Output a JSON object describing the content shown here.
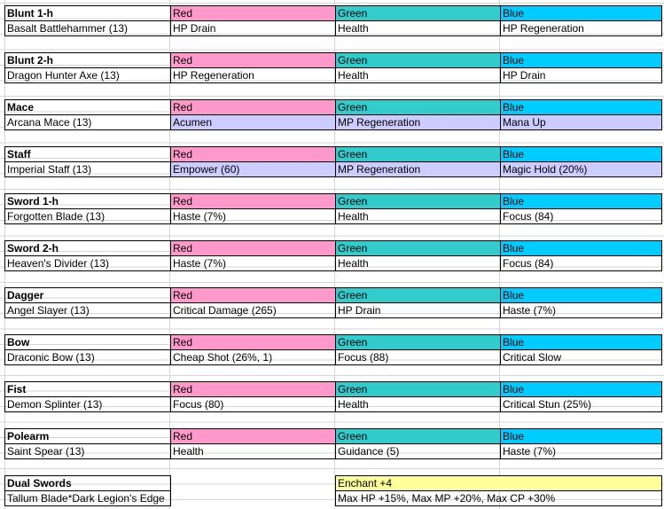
{
  "weapons": [
    {
      "type": "Blunt 1-h",
      "name": "Basalt Battlehammer (13)",
      "red": "HP Drain",
      "green": "Health",
      "blue": "HP Regeneration"
    },
    {
      "type": "Blunt 2-h",
      "name": "Dragon Hunter Axe (13)",
      "red": "HP Regeneration",
      "green": "Health",
      "blue": "HP Drain"
    },
    {
      "type": "Mace",
      "name": "Arcana Mace (13)",
      "red": "Acumen",
      "green": "MP Regeneration",
      "blue": "Mana Up"
    },
    {
      "type": "Staff",
      "name": "Imperial Staff (13)",
      "red": "Empower (60)",
      "green": "MP Regeneration",
      "blue": "Magic Hold (20%)"
    },
    {
      "type": "Sword 1-h",
      "name": "Forgotten Blade (13)",
      "red": "Haste (7%)",
      "green": "Health",
      "blue": "Focus (84)"
    },
    {
      "type": "Sword 2-h",
      "name": "Heaven's Divider (13)",
      "red": "Haste (7%)",
      "green": "Health",
      "blue": "Focus (84)"
    },
    {
      "type": "Dagger",
      "name": "Angel Slayer (13)",
      "red": "Critical Damage (265)",
      "green": "HP Drain",
      "blue": "Haste (7%)"
    },
    {
      "type": "Bow",
      "name": "Draconic Bow (13)",
      "red": "Cheap Shot (26%, 1)",
      "green": "Focus (88)",
      "blue": "Critical Slow"
    },
    {
      "type": "Fist",
      "name": "Demon Splinter (13)",
      "red": "Focus (80)",
      "green": "Health",
      "blue": "Critical Stun (25%)"
    },
    {
      "type": "Polearm",
      "name": "Saint Spear (13)",
      "red": "Health",
      "green": "Guidance (5)",
      "blue": "Haste (7%)"
    }
  ],
  "headers": {
    "red": "Red",
    "green": "Green",
    "blue": "Blue"
  },
  "dual": {
    "type": "Dual Swords",
    "name": "Tallum Blade*Dark Legion's Edge",
    "enchant": "Enchant +4",
    "bonus": "Max HP +15%, Max MP +20%, Max CP +30%"
  },
  "colors": {
    "red": "#ff99cc",
    "green": "#33cccc",
    "blue": "#00ccff",
    "highlight": "#ccccff",
    "enchant": "#ffff99"
  }
}
